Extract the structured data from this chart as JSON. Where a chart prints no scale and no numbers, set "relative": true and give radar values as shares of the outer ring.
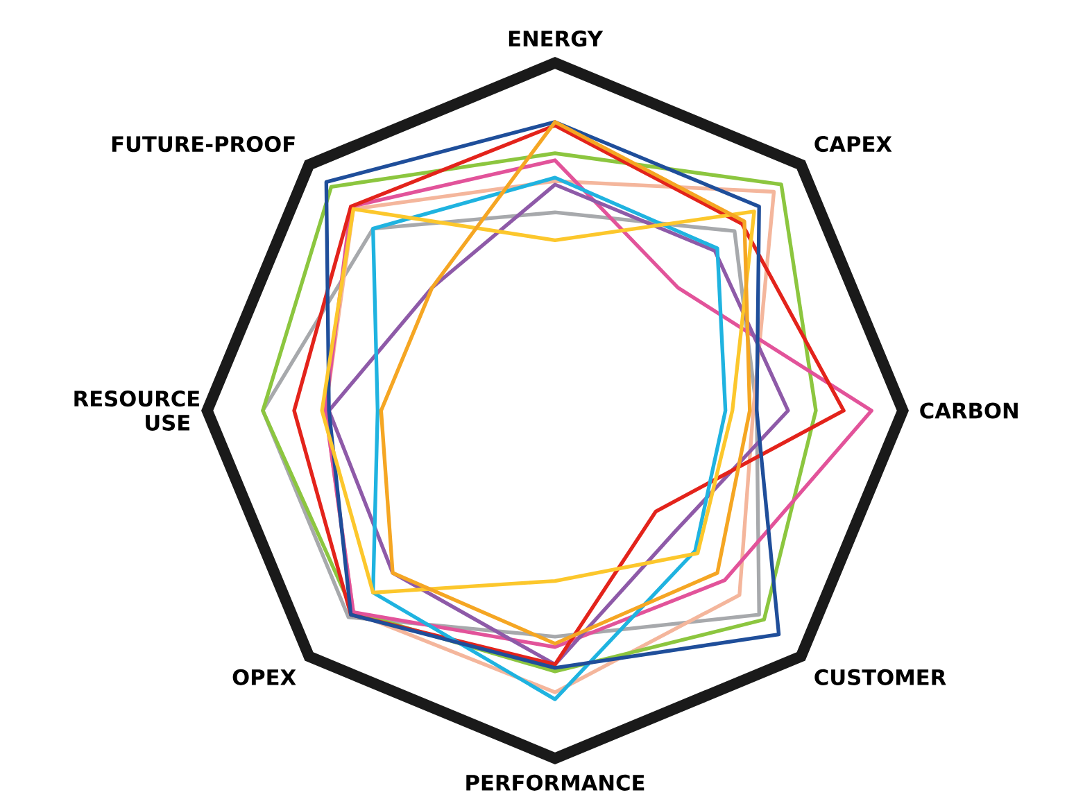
{
  "chart_data": {
    "type": "radar",
    "relative": true,
    "categories": [
      "ENERGY",
      "CAPEX",
      "CARBON",
      "CUSTOMER",
      "PERFORMANCE",
      "OPEX",
      "RESOURCE USE",
      "FUTURE-PROOF"
    ],
    "series": [
      {
        "color": "#a7a9ac",
        "values": [
          0.57,
          0.73,
          0.58,
          0.83,
          0.65,
          0.84,
          0.84,
          0.74
        ]
      },
      {
        "color": "#f4b69c",
        "values": [
          0.66,
          0.89,
          0.57,
          0.75,
          0.81,
          0.82,
          0.66,
          0.82
        ]
      },
      {
        "color": "#8cc63f",
        "values": [
          0.74,
          0.92,
          0.75,
          0.85,
          0.75,
          0.82,
          0.84,
          0.91
        ]
      },
      {
        "color": "#e2539a",
        "values": [
          0.72,
          0.5,
          0.91,
          0.69,
          0.68,
          0.82,
          0.66,
          0.83
        ]
      },
      {
        "color": "#8e5aa8",
        "values": [
          0.65,
          0.65,
          0.67,
          0.49,
          0.73,
          0.66,
          0.65,
          0.5
        ]
      },
      {
        "color": "#e3231b",
        "values": [
          0.82,
          0.76,
          0.83,
          0.41,
          0.73,
          0.83,
          0.75,
          0.83
        ]
      },
      {
        "color": "#1fb3e0",
        "values": [
          0.67,
          0.66,
          0.49,
          0.57,
          0.83,
          0.74,
          0.51,
          0.74
        ]
      },
      {
        "color": "#1f4e9a",
        "values": [
          0.83,
          0.83,
          0.58,
          0.91,
          0.74,
          0.83,
          0.65,
          0.93
        ]
      },
      {
        "color": "#fcc72c",
        "values": [
          0.49,
          0.81,
          0.51,
          0.58,
          0.49,
          0.74,
          0.67,
          0.82
        ]
      },
      {
        "color": "#f5a623",
        "values": [
          0.83,
          0.77,
          0.56,
          0.66,
          0.67,
          0.66,
          0.5,
          0.5
        ]
      }
    ]
  }
}
